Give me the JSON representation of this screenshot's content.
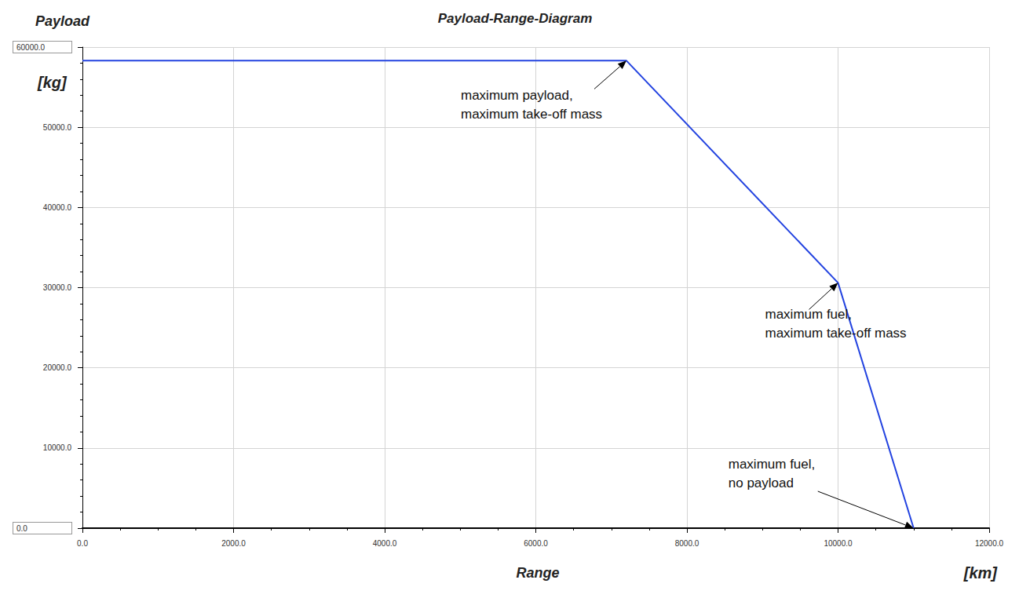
{
  "chart_data": {
    "type": "line",
    "title": "Payload-Range-Diagram",
    "ylabel": "Payload",
    "yunit": "[kg]",
    "xlabel": "Range",
    "xunit": "[km]",
    "x": [
      0,
      7200,
      10000,
      11000
    ],
    "values": [
      58300,
      58300,
      30600,
      0
    ],
    "color": "#2343e0",
    "xlim": [
      0,
      12000
    ],
    "xticks": [
      {
        "value": 0,
        "label": "0.0"
      },
      {
        "value": 2000,
        "label": "2000.0"
      },
      {
        "value": 4000,
        "label": "4000.0"
      },
      {
        "value": 6000,
        "label": "6000.0"
      },
      {
        "value": 8000,
        "label": "8000.0"
      },
      {
        "value": 10000,
        "label": "10000.0"
      },
      {
        "value": 12000,
        "label": "12000.0"
      }
    ],
    "ylim": [
      0,
      60000
    ],
    "yticks": [
      {
        "value": 0,
        "label": "0.0"
      },
      {
        "value": 10000,
        "label": "10000.0"
      },
      {
        "value": 20000,
        "label": "20000.0"
      },
      {
        "value": 30000,
        "label": "30000.0"
      },
      {
        "value": 40000,
        "label": "40000.0"
      },
      {
        "value": 50000,
        "label": "50000.0"
      },
      {
        "value": 60000,
        "label": "60000.0"
      }
    ],
    "grid": true,
    "annotations": [
      {
        "text": "maximum payload,\nmaximum take-off mass",
        "x": 7200,
        "y": 58300
      },
      {
        "text": "maximum fuel,\nmaximum take-off mass",
        "x": 10000,
        "y": 30600
      },
      {
        "text": "maximum fuel,\nno payload",
        "x": 11000,
        "y": 0
      }
    ]
  }
}
